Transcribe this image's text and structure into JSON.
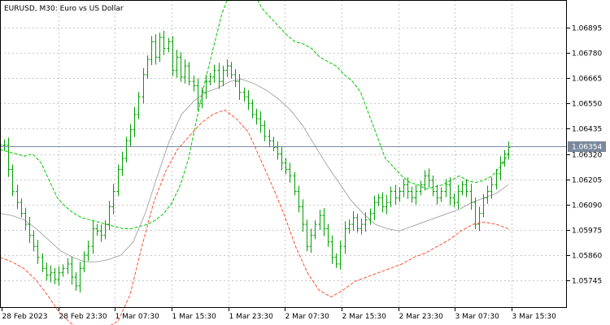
{
  "chart_data": {
    "type": "line",
    "title": "EURUSD, M30:  Euro vs US Dollar",
    "ylim": [
      1.0562,
      1.0702
    ],
    "grid": true,
    "y_ticks": [
      "1.06895",
      "1.06780",
      "1.06665",
      "1.06550",
      "1.06435",
      "1.06320",
      "1.06205",
      "1.06090",
      "1.05975",
      "1.05860",
      "1.05745"
    ],
    "x_tick_labels": [
      "28 Feb 2023",
      "28 Feb 23:30",
      "1 Mar 07:30",
      "1 Mar 15:30",
      "1 Mar 23:30",
      "2 Mar 07:30",
      "2 Mar 15:30",
      "2 Mar 23:30",
      "3 Mar 07:30",
      "3 Mar 15:30"
    ],
    "current_price": "1.06354",
    "colors": {
      "bar": "#00a000",
      "upper_band": "#00c800",
      "lower_band": "#ff5030",
      "middle": "#aaaaaa",
      "price_line": "#7a8a9c",
      "price_label_bg": "#7a8a9c"
    },
    "ohlc_close": [
      1.0636,
      1.0636,
      1.0625,
      1.0615,
      1.061,
      1.0605,
      1.06,
      1.0595,
      1.059,
      1.0585,
      1.058,
      1.0577,
      1.0578,
      1.0575,
      1.0578,
      1.058,
      1.0582,
      1.0576,
      1.0572,
      1.058,
      1.0586,
      1.059,
      1.0598,
      1.0597,
      1.0595,
      1.06,
      1.0608,
      1.0615,
      1.0625,
      1.063,
      1.0638,
      1.0643,
      1.065,
      1.0658,
      1.0668,
      1.0675,
      1.0683,
      1.0676,
      1.0685,
      1.068,
      1.0683,
      1.067,
      1.0676,
      1.0667,
      1.0672,
      1.0665,
      1.0663,
      1.0655,
      1.066,
      1.0665,
      1.0667,
      1.067,
      1.0665,
      1.067,
      1.0672,
      1.0668,
      1.0665,
      1.066,
      1.0658,
      1.0655,
      1.065,
      1.0648,
      1.0645,
      1.064,
      1.0638,
      1.0635,
      1.0632,
      1.0628,
      1.0625,
      1.0622,
      1.0615,
      1.0608,
      1.06,
      1.059,
      1.0595,
      1.06,
      1.0604,
      1.0598,
      1.0592,
      1.0585,
      1.0582,
      1.059,
      1.0598,
      1.06,
      1.0603,
      1.0598,
      1.06,
      1.0602,
      1.0605,
      1.061,
      1.0612,
      1.0608,
      1.061,
      1.0615,
      1.0612,
      1.0615,
      1.0618,
      1.0615,
      1.0612,
      1.0615,
      1.0618,
      1.0622,
      1.062,
      1.0615,
      1.0612,
      1.0615,
      1.0618,
      1.0612,
      1.061,
      1.0615,
      1.0618,
      1.0615,
      1.061,
      1.06,
      1.0605,
      1.0612,
      1.0615,
      1.0618,
      1.0623,
      1.0628,
      1.0632,
      1.0635
    ],
    "upper_band": [
      1.0634,
      1.0633,
      1.0632,
      1.0631,
      1.0632,
      1.0628,
      1.062,
      1.0612,
      1.0608,
      1.0605,
      1.0603,
      1.0602,
      1.0601,
      1.06,
      1.0599,
      1.0598,
      1.0598,
      1.0599,
      1.06,
      1.0602,
      1.0605,
      1.061,
      1.0618,
      1.063,
      1.0648,
      1.0665,
      1.068,
      1.0695,
      1.0705,
      1.0712,
      1.071,
      1.0705,
      1.0698,
      1.0694,
      1.069,
      1.0686,
      1.0683,
      1.0682,
      1.068,
      1.0676,
      1.0674,
      1.0672,
      1.0668,
      1.0665,
      1.066,
      1.065,
      1.064,
      1.063,
      1.0626,
      1.0622,
      1.0619,
      1.0618,
      1.0616,
      1.0617,
      1.0618,
      1.062,
      1.0622,
      1.062,
      1.0619,
      1.062,
      1.0622,
      1.0626,
      1.0632
    ],
    "middle_band": [
      1.0605,
      1.0604,
      1.0602,
      1.0598,
      1.0593,
      1.0588,
      1.0585,
      1.0583,
      1.0583,
      1.0584,
      1.0586,
      1.0592,
      1.0605,
      1.0622,
      1.0638,
      1.065,
      1.0656,
      1.066,
      1.0662,
      1.0665,
      1.0666,
      1.0664,
      1.0661,
      1.0657,
      1.0652,
      1.0645,
      1.0636,
      1.0627,
      1.0619,
      1.0611,
      1.0605,
      1.06,
      1.0598,
      1.0597,
      1.0599,
      1.0601,
      1.0603,
      1.0605,
      1.0607,
      1.061,
      1.0612,
      1.0614,
      1.0618
    ],
    "lower_band": [
      1.0585,
      1.0583,
      1.058,
      1.0575,
      1.0568,
      1.056,
      1.0555,
      1.0552,
      1.0551,
      1.0553,
      1.0556,
      1.0568,
      1.059,
      1.061,
      1.0624,
      1.0634,
      1.064,
      1.0646,
      1.065,
      1.0652,
      1.0648,
      1.0642,
      1.063,
      1.0618,
      1.0605,
      1.059,
      1.0578,
      1.057,
      1.0567,
      1.057,
      1.0574,
      1.0576,
      1.0578,
      1.058,
      1.0582,
      1.0585,
      1.0587,
      1.059,
      1.0593,
      1.0597,
      1.06,
      1.0601,
      1.06,
      1.0598
    ]
  }
}
